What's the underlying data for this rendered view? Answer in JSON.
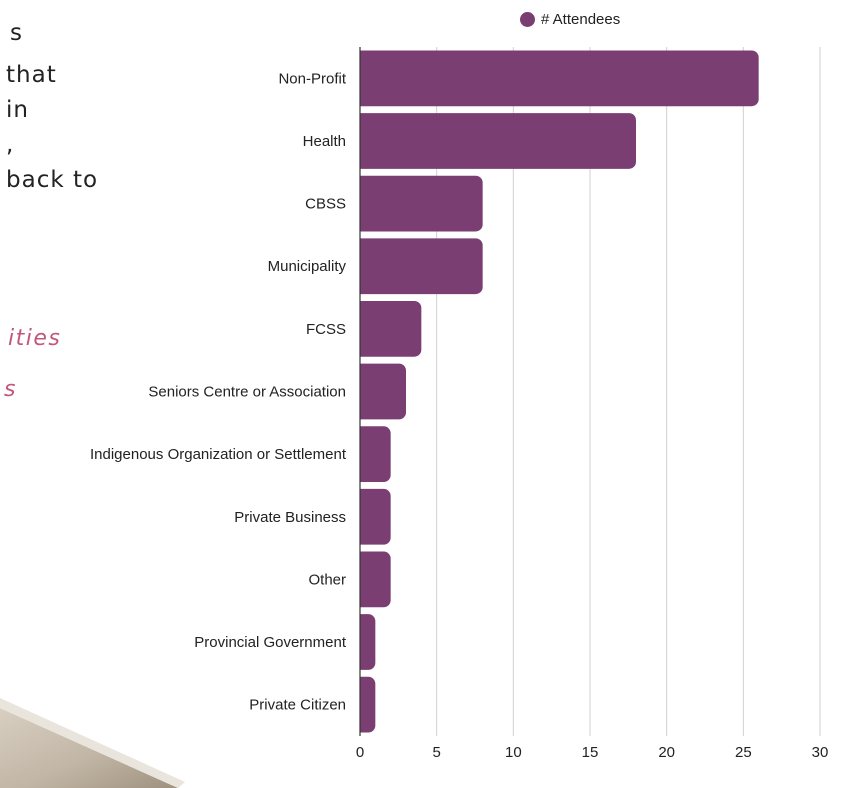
{
  "background_text": {
    "lines": [
      "s",
      "that",
      " in",
      ",",
      "back to"
    ],
    "accent_lines": [
      "ities",
      "s"
    ],
    "accent_color": "#c2577a"
  },
  "chart_data": {
    "type": "bar",
    "orientation": "horizontal",
    "categories": [
      "Non-Profit",
      "Health",
      "CBSS",
      "Municipality",
      "FCSS",
      "Seniors Centre or Association",
      "Indigenous Organization or Settlement",
      "Private Business",
      "Other",
      "Provincial Government",
      "Private Citizen"
    ],
    "series": [
      {
        "name": "# Attendees",
        "values": [
          26,
          18,
          8,
          8,
          4,
          3,
          2,
          2,
          2,
          1,
          1
        ],
        "color": "#7a3e72"
      }
    ],
    "xlim": [
      0,
      30
    ],
    "xticks": [
      0,
      5,
      10,
      15,
      20,
      25,
      30
    ],
    "grid": "vertical",
    "legend_position": "top"
  }
}
